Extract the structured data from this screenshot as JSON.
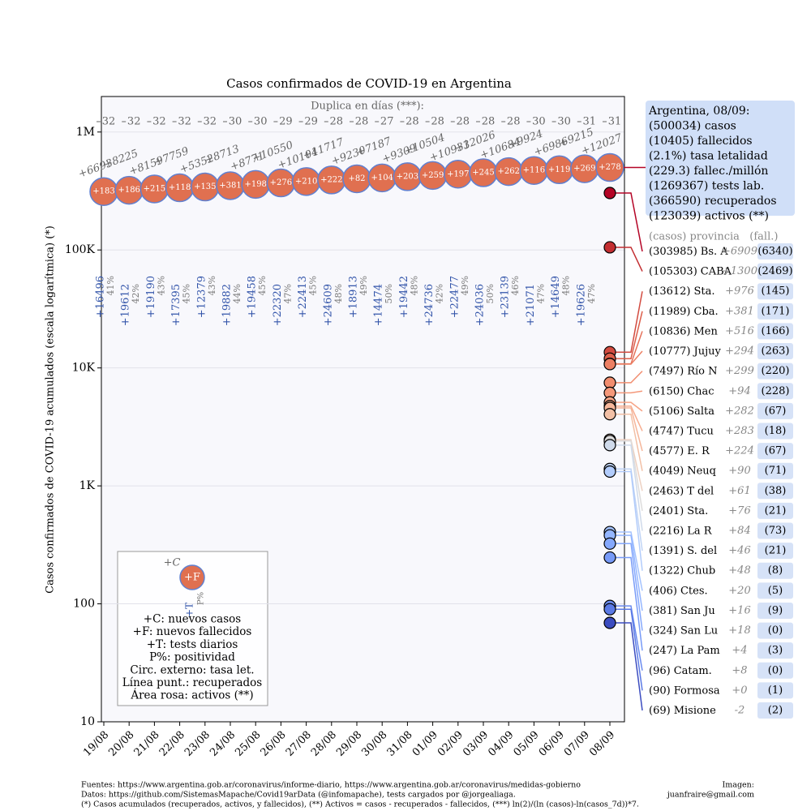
{
  "chart_data": {
    "type": "line",
    "title": "Casos confirmados de COVID-19 en Argentina",
    "y_label": "Casos confirmados de COVID-19 acumulados (escala logarítmica) (*)",
    "log_scale": true,
    "grid": true,
    "categories": [
      "19/08",
      "20/08",
      "21/08",
      "22/08",
      "23/08",
      "24/08",
      "25/08",
      "26/08",
      "27/08",
      "28/08",
      "29/08",
      "30/08",
      "31/08",
      "01/09",
      "02/09",
      "03/09",
      "04/09",
      "05/09",
      "06/09",
      "07/09",
      "08/09"
    ],
    "ylim": [
      10,
      2000000
    ],
    "yticks": [
      10,
      100,
      {
        "value": 1000,
        "label": "1K"
      },
      {
        "value": 10000,
        "label": "10K"
      },
      {
        "value": 100000,
        "label": "100K"
      },
      {
        "value": 1000000,
        "label": "1M"
      }
    ],
    "doubling_title": "Duplica en días (***):",
    "doubling_days": [
      32,
      32,
      32,
      32,
      32,
      30,
      30,
      29,
      29,
      28,
      28,
      27,
      28,
      28,
      28,
      28,
      28,
      30,
      30,
      31,
      31
    ],
    "series": [
      {
        "color": "#e07050",
        "values": [
          312659,
          320884,
          329043,
          336802,
          342154,
          350867,
          359638,
          370188,
          380292,
          392009,
          401239,
          408426,
          417735,
          428239,
          439172,
          451198,
          461882,
          471806,
          478792,
          488007,
          500034
        ],
        "new_cases_labels": [
          "+6693",
          "+8225",
          "+8159",
          "+7759",
          "+5352",
          "+8713",
          "+8771",
          "+10550",
          "+10104",
          "+11717",
          "+9230",
          "+7187",
          "+9309",
          "+10504",
          "+10933",
          "+12026",
          "+10684",
          "+9924",
          "+6986",
          "+9215",
          "+12027"
        ],
        "new_deaths_labels": [
          "+183",
          "+186",
          "+215",
          "+118",
          "+135",
          "+381",
          "+198",
          "+276",
          "+210",
          "+222",
          "+82",
          "+104",
          "+203",
          "+259",
          "+197",
          "+245",
          "+262",
          "+116",
          "+119",
          "+269",
          "+278"
        ]
      }
    ],
    "tests_labels": [
      "+16496",
      "+19612",
      "+19190",
      "+17395",
      "+12379",
      "+19882",
      "+19458",
      "+22320",
      "+22413",
      "+24609",
      "+18913",
      "+14474",
      "+19442",
      "+24736",
      "+22477",
      "+24036",
      "+23139",
      "+21071",
      "+14649",
      "+19626",
      null
    ],
    "positivity_labels": [
      "41%",
      "42%",
      "43%",
      "45%",
      "43%",
      "44%",
      "45%",
      "47%",
      "45%",
      "48%",
      "49%",
      "50%",
      "48%",
      "42%",
      "49%",
      "50%",
      "46%",
      "47%",
      "48%",
      "47%",
      null
    ],
    "provinces_header": "(casos) provincia   (fall.)",
    "provinces": [
      {
        "name": "Bs. A",
        "color": "#b40426",
        "value": 303985,
        "value_label": "(303985)",
        "new_cases_label": "+6909",
        "deaths_label": "(6340)"
      },
      {
        "name": "CABA",
        "color": "#c32e31",
        "value": 105303,
        "value_label": "(105303)",
        "new_cases_label": "+1300",
        "deaths_label": "(2469)"
      },
      {
        "name": "Sta.",
        "color": "#d24b40",
        "value": 13612,
        "value_label": "(13612)",
        "new_cases_label": "+976",
        "deaths_label": "(145)"
      },
      {
        "name": "Cba.",
        "color": "#dd5f4b",
        "value": 11989,
        "value_label": "(11989)",
        "new_cases_label": "+381",
        "deaths_label": "(171)"
      },
      {
        "name": "Men",
        "color": "#e57058",
        "value": 10836,
        "value_label": "(10836)",
        "new_cases_label": "+516",
        "deaths_label": "(166)"
      },
      {
        "name": "Jujuy",
        "color": "#ec7f63",
        "value": 10777,
        "value_label": "(10777)",
        "new_cases_label": "+294",
        "deaths_label": "(263)"
      },
      {
        "name": "Río N",
        "color": "#f18d6f",
        "value": 7497,
        "value_label": "(7497)",
        "new_cases_label": "+299",
        "deaths_label": "(220)"
      },
      {
        "name": "Chac",
        "color": "#f4987a",
        "value": 6150,
        "value_label": "(6150)",
        "new_cases_label": "+94",
        "deaths_label": "(228)"
      },
      {
        "name": "Salta",
        "color": "#f6a385",
        "value": 5106,
        "value_label": "(5106)",
        "new_cases_label": "+282",
        "deaths_label": "(67)"
      },
      {
        "name": "Tucu",
        "color": "#f7ad90",
        "value": 4747,
        "value_label": "(4747)",
        "new_cases_label": "+283",
        "deaths_label": "(18)"
      },
      {
        "name": "E. R",
        "color": "#f5b69a",
        "value": 4577,
        "value_label": "(4577)",
        "new_cases_label": "+224",
        "deaths_label": "(67)"
      },
      {
        "name": "Neuq",
        "color": "#f2c0a6",
        "value": 4049,
        "value_label": "(4049)",
        "new_cases_label": "+90",
        "deaths_label": "(71)"
      },
      {
        "name": "T del",
        "color": "#edd1c2",
        "value": 2463,
        "value_label": "(2463)",
        "new_cases_label": "+61",
        "deaths_label": "(38)"
      },
      {
        "name": "Sta.",
        "color": "#dddcdc",
        "value": 2401,
        "value_label": "(2401)",
        "new_cases_label": "+76",
        "deaths_label": "(21)"
      },
      {
        "name": "La R",
        "color": "#cfdaea",
        "value": 2216,
        "value_label": "(2216)",
        "new_cases_label": "+84",
        "deaths_label": "(73)"
      },
      {
        "name": "S. del",
        "color": "#c0d4f5",
        "value": 1391,
        "value_label": "(1391)",
        "new_cases_label": "+46",
        "deaths_label": "(21)"
      },
      {
        "name": "Chub",
        "color": "#b2ccfb",
        "value": 1322,
        "value_label": "(1322)",
        "new_cases_label": "+48",
        "deaths_label": "(8)"
      },
      {
        "name": "Ctes.",
        "color": "#a3c2fe",
        "value": 406,
        "value_label": "(406)",
        "new_cases_label": "+20",
        "deaths_label": "(5)"
      },
      {
        "name": "San Ju",
        "color": "#94b6ff",
        "value": 381,
        "value_label": "(381)",
        "new_cases_label": "+16",
        "deaths_label": "(9)"
      },
      {
        "name": "San Lu",
        "color": "#85a8fc",
        "value": 324,
        "value_label": "(324)",
        "new_cases_label": "+18",
        "deaths_label": "(0)"
      },
      {
        "name": "La Pam",
        "color": "#779af7",
        "value": 247,
        "value_label": "(247)",
        "new_cases_label": "+4",
        "deaths_label": "(3)"
      },
      {
        "name": "Catam.",
        "color": "#6a8bef",
        "value": 96,
        "value_label": "(96)",
        "new_cases_label": "+8",
        "deaths_label": "(0)"
      },
      {
        "name": "Formosa",
        "color": "#5b7ae5",
        "value": 90,
        "value_label": "(90)",
        "new_cases_label": "+0",
        "deaths_label": "(1)"
      },
      {
        "name": "Misione",
        "color": "#3b4cc0",
        "value": 69,
        "value_label": "(69)",
        "new_cases_label": "-2",
        "deaths_label": "(2)"
      }
    ],
    "legend": {
      "sample_labels": [
        "+C",
        "+F",
        "+T",
        "P%"
      ],
      "lines": [
        "+C: nuevos casos",
        "+F: nuevos fallecidos",
        "+T: tests diarios",
        "P%: positividad",
        "Circ. externo: tasa let.",
        "Línea punt.: recuperados",
        "Área rosa: activos (**)"
      ]
    }
  },
  "info_box": [
    "Argentina, 08/09:",
    "(500034) casos",
    "(10405) fallecidos",
    "(2.1%) tasa letalidad",
    "(229.3) fallec./millón",
    "(1269367) tests lab.",
    "(366590) recuperados",
    "(123039) activos (**)"
  ],
  "footer": {
    "lines": [
      "Fuentes: https://www.argentina.gob.ar/coronavirus/informe-diario, https://www.argentina.gob.ar/coronavirus/medidas-gobierno",
      "Datos: https://github.com/SistemasMapache/Covid19arData (@infomapache), tests cargados por @jorgealiaga.",
      "(*) Casos acumulados (recuperados, activos, y fallecidos), (**) Activos = casos - recuperados - fallecidos, (***) ln(2)/(ln (casos)-ln(casos_7d))*7."
    ],
    "image_credit": [
      "Imagen:",
      "juanfraire@gmail.com"
    ]
  }
}
